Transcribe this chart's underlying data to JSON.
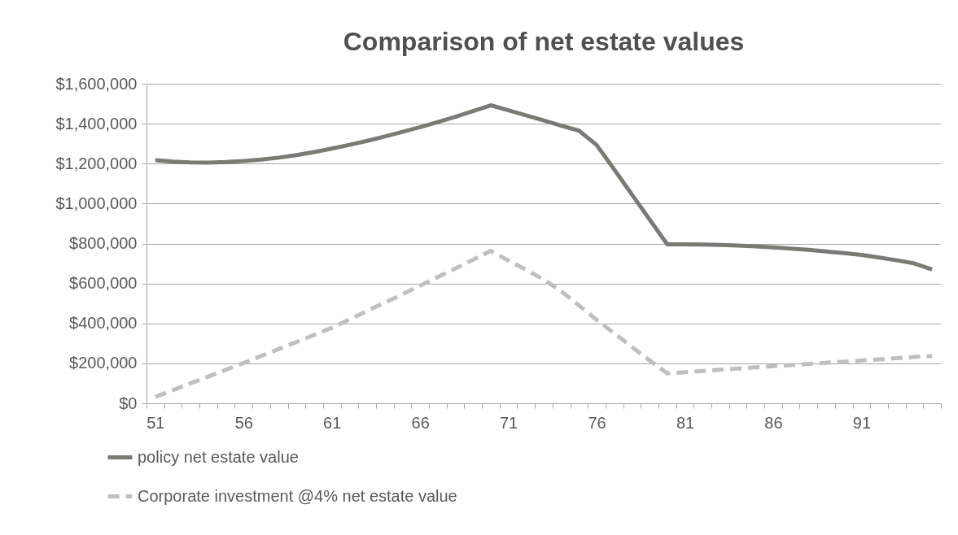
{
  "chart_data": {
    "type": "line",
    "title": "Comparison of net estate values",
    "categories": [
      "51",
      null,
      null,
      null,
      null,
      "56",
      null,
      null,
      null,
      null,
      "61",
      null,
      null,
      null,
      null,
      "66",
      null,
      null,
      null,
      null,
      "71",
      null,
      null,
      null,
      null,
      "76",
      null,
      null,
      null,
      null,
      "81",
      null,
      null,
      null,
      null,
      "86",
      null,
      null,
      null,
      null,
      "91",
      null,
      null,
      null,
      null
    ],
    "series": [
      {
        "name": "policy net estate value",
        "color": "#7a7b75",
        "line_style": "solid",
        "values": [
          1217000,
          1210000,
          1206000,
          1205000,
          1208000,
          1213000,
          1220000,
          1230000,
          1243000,
          1258000,
          1275000,
          1294000,
          1314000,
          1336000,
          1359000,
          1383000,
          1408000,
          1435000,
          1463000,
          1492000,
          1467000,
          1442000,
          1416000,
          1390000,
          1365000,
          1293000,
          1170000,
          1045000,
          920000,
          796000,
          796000,
          795000,
          793000,
          790000,
          786000,
          781000,
          775000,
          768000,
          760000,
          752000,
          743000,
          730000,
          716000,
          700000,
          670000
        ]
      },
      {
        "name": "Corporate investment @4% net estate value",
        "color": "#bfbfbf",
        "line_style": "dashed",
        "values": [
          32000,
          66000,
          100000,
          134000,
          168000,
          202000,
          237000,
          272000,
          307000,
          342000,
          378000,
          420000,
          462000,
          504000,
          546000,
          589000,
          632000,
          675000,
          719000,
          763000,
          715000,
          668000,
          620000,
          560000,
          490000,
          418000,
          350000,
          282000,
          215000,
          150000,
          156000,
          162000,
          168000,
          174000,
          180000,
          186000,
          191000,
          197000,
          203000,
          208000,
          214000,
          220000,
          226000,
          232000,
          237000
        ]
      }
    ],
    "ylim": [
      0,
      1600000
    ],
    "yticks": [
      {
        "value": 0,
        "label": "$0"
      },
      {
        "value": 200000,
        "label": "$200,000"
      },
      {
        "value": 400000,
        "label": "$400,000"
      },
      {
        "value": 600000,
        "label": "$600,000"
      },
      {
        "value": 800000,
        "label": "$800,000"
      },
      {
        "value": 1000000,
        "label": "$1,000,000"
      },
      {
        "value": 1200000,
        "label": "$1,200,000"
      },
      {
        "value": 1400000,
        "label": "$1,400,000"
      },
      {
        "value": 1600000,
        "label": "$1,600,000"
      }
    ],
    "grid": "y",
    "legend": "bottom"
  }
}
